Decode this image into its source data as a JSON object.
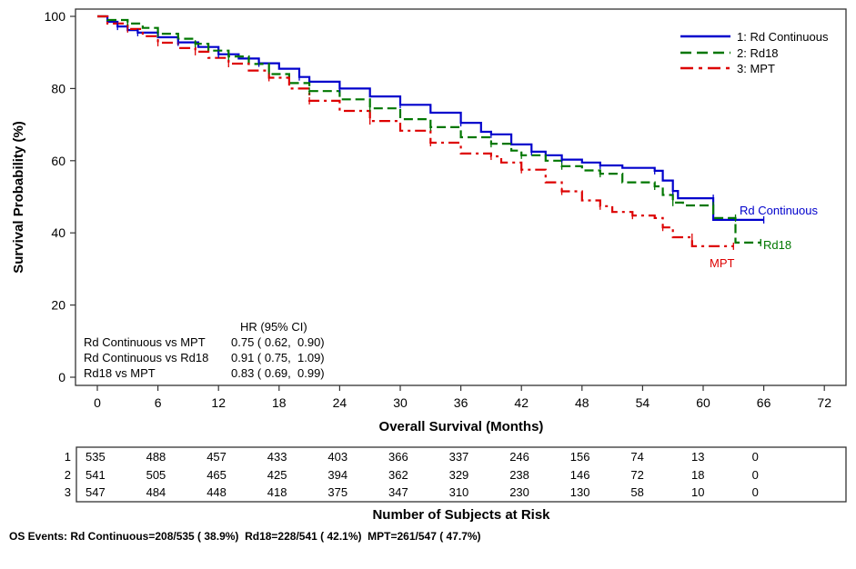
{
  "chart_data": {
    "type": "line",
    "subtype": "kaplan-meier",
    "xlabel": "Overall Survival (Months)",
    "ylabel": "Survival Probability (%)",
    "xlim": [
      -3,
      74
    ],
    "ylim": [
      -2,
      102
    ],
    "x_ticks": [
      0,
      6,
      12,
      18,
      24,
      30,
      36,
      42,
      48,
      54,
      60,
      66,
      72
    ],
    "y_ticks": [
      0,
      20,
      40,
      60,
      80,
      100
    ],
    "grid": false,
    "legend": {
      "position": "top-right",
      "entries": [
        "1: Rd Continuous",
        "2: Rd18",
        "3: MPT"
      ]
    },
    "series": [
      {
        "name": "Rd Continuous",
        "legend_label": "1: Rd Continuous",
        "end_label": "Rd Continuous",
        "color": "#0000cc",
        "style": "solid",
        "points": [
          [
            0,
            100
          ],
          [
            1,
            98.5
          ],
          [
            2,
            97.2
          ],
          [
            3,
            96.2
          ],
          [
            4,
            95.5
          ],
          [
            6,
            94.2
          ],
          [
            8,
            92.8
          ],
          [
            10,
            91.5
          ],
          [
            12,
            89.5
          ],
          [
            14,
            88.3
          ],
          [
            16,
            87.0
          ],
          [
            18,
            85.5
          ],
          [
            20,
            83.2
          ],
          [
            21,
            81.9
          ],
          [
            24,
            80.0
          ],
          [
            27,
            77.8
          ],
          [
            30,
            75.5
          ],
          [
            33,
            73.3
          ],
          [
            36,
            70.5
          ],
          [
            38,
            68.0
          ],
          [
            39,
            67.3
          ],
          [
            41,
            64.5
          ],
          [
            43,
            62.5
          ],
          [
            44.4,
            61.5
          ],
          [
            46,
            60.3
          ],
          [
            48,
            59.5
          ],
          [
            49.8,
            58.7
          ],
          [
            52,
            58.0
          ],
          [
            55.2,
            57.2
          ],
          [
            56,
            54.5
          ],
          [
            57,
            51.6
          ],
          [
            57.5,
            49.6
          ],
          [
            61,
            49.6
          ],
          [
            61,
            43.6
          ],
          [
            66,
            43.6
          ]
        ]
      },
      {
        "name": "Rd18",
        "legend_label": "2: Rd18",
        "end_label": "Rd18",
        "color": "#007700",
        "style": "dashed",
        "points": [
          [
            0,
            100
          ],
          [
            1,
            99.0
          ],
          [
            3,
            98.0
          ],
          [
            4.5,
            96.8
          ],
          [
            6,
            95.2
          ],
          [
            8,
            93.8
          ],
          [
            9.7,
            92.4
          ],
          [
            11,
            90.5
          ],
          [
            13,
            88.9
          ],
          [
            15,
            86.8
          ],
          [
            17,
            84.0
          ],
          [
            19,
            81.5
          ],
          [
            21,
            79.3
          ],
          [
            24,
            77.0
          ],
          [
            27,
            74.5
          ],
          [
            30,
            71.5
          ],
          [
            33,
            69.3
          ],
          [
            36,
            66.5
          ],
          [
            39,
            64.7
          ],
          [
            41,
            62.8
          ],
          [
            42,
            61.5
          ],
          [
            44.4,
            60.0
          ],
          [
            46,
            58.5
          ],
          [
            48,
            57.3
          ],
          [
            49.8,
            56.4
          ],
          [
            52,
            54.0
          ],
          [
            55.2,
            52.9
          ],
          [
            56,
            50.5
          ],
          [
            57,
            48.4
          ],
          [
            58,
            47.6
          ],
          [
            61,
            47.6
          ],
          [
            61,
            44.1
          ],
          [
            63.2,
            44.1
          ],
          [
            63.2,
            37.3
          ],
          [
            65.7,
            37.3
          ]
        ]
      },
      {
        "name": "MPT",
        "legend_label": "3: MPT",
        "end_label": "MPT",
        "color": "#dd0000",
        "style": "dash-dot",
        "points": [
          [
            0,
            100
          ],
          [
            1,
            98.0
          ],
          [
            3,
            96.5
          ],
          [
            4.5,
            94.5
          ],
          [
            6,
            92.7
          ],
          [
            8,
            91.2
          ],
          [
            9.7,
            90.2
          ],
          [
            11,
            88.5
          ],
          [
            13,
            86.9
          ],
          [
            15,
            85.0
          ],
          [
            17,
            83.0
          ],
          [
            19,
            80.0
          ],
          [
            21,
            76.6
          ],
          [
            24,
            73.8
          ],
          [
            27,
            71.0
          ],
          [
            30,
            68.3
          ],
          [
            33,
            65.0
          ],
          [
            36,
            62.0
          ],
          [
            39,
            61.2
          ],
          [
            40,
            59.5
          ],
          [
            42,
            57.5
          ],
          [
            44.4,
            54.0
          ],
          [
            46,
            51.5
          ],
          [
            48,
            49.0
          ],
          [
            49.8,
            47.4
          ],
          [
            51,
            45.8
          ],
          [
            53,
            44.8
          ],
          [
            55.2,
            44.1
          ],
          [
            56,
            41.5
          ],
          [
            57,
            38.8
          ],
          [
            58.9,
            38.8
          ],
          [
            58.9,
            36.3
          ],
          [
            63,
            36.3
          ]
        ]
      }
    ],
    "hr_table": {
      "header": "HR (95% CI)",
      "rows": [
        {
          "label": "Rd Continuous vs MPT",
          "value": "0.75 ( 0.62,  0.90)"
        },
        {
          "label": "Rd Continuous vs Rd18",
          "value": "0.91 ( 0.75,  1.09)"
        },
        {
          "label": "Rd18 vs MPT",
          "value": "0.83 ( 0.69,  0.99)"
        }
      ]
    },
    "risk_table": {
      "title": "Number of Subjects at Risk",
      "timepoints": [
        0,
        6,
        12,
        18,
        24,
        30,
        36,
        42,
        48,
        54,
        60,
        66
      ],
      "rows": [
        {
          "id": "1",
          "values": [
            535,
            488,
            457,
            433,
            403,
            366,
            337,
            246,
            156,
            74,
            13,
            0
          ]
        },
        {
          "id": "2",
          "values": [
            541,
            505,
            465,
            425,
            394,
            362,
            329,
            238,
            146,
            72,
            18,
            0
          ]
        },
        {
          "id": "3",
          "values": [
            547,
            484,
            448,
            418,
            375,
            347,
            310,
            230,
            130,
            58,
            10,
            0
          ]
        }
      ]
    },
    "footnote": "OS Events: Rd Continuous=208/535 ( 38.9%)  Rd18=228/541 ( 42.1%)  MPT=261/547 ( 47.7%)"
  }
}
